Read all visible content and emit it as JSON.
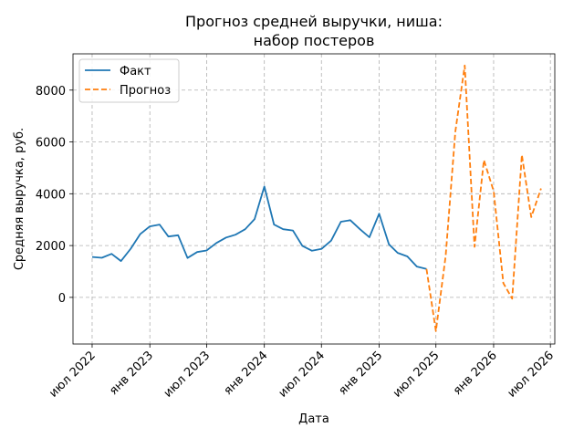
{
  "chart_data": {
    "type": "line",
    "title": [
      "Прогноз средней выручки, ниша:",
      "набор постеров"
    ],
    "xlabel": "Дата",
    "ylabel": "Средняя выручка, руб.",
    "grid": true,
    "legend_position": "top-left",
    "xlim": [
      "2022-05-01",
      "2026-07-15"
    ],
    "ylim": [
      -1800,
      9400
    ],
    "x_ticks": [
      {
        "date": "2022-07-01",
        "label": "июл 2022"
      },
      {
        "date": "2023-01-01",
        "label": "янв 2023"
      },
      {
        "date": "2023-07-01",
        "label": "июл 2023"
      },
      {
        "date": "2024-01-01",
        "label": "янв 2024"
      },
      {
        "date": "2024-07-01",
        "label": "июл 2024"
      },
      {
        "date": "2025-01-01",
        "label": "янв 2025"
      },
      {
        "date": "2025-07-01",
        "label": "июл 2025"
      },
      {
        "date": "2026-01-01",
        "label": "янв 2026"
      },
      {
        "date": "2026-07-01",
        "label": "июл 2026"
      }
    ],
    "y_ticks": [
      {
        "value": 0,
        "label": "0"
      },
      {
        "value": 2000,
        "label": "2000"
      },
      {
        "value": 4000,
        "label": "4000"
      },
      {
        "value": 6000,
        "label": "6000"
      },
      {
        "value": 8000,
        "label": "8000"
      }
    ],
    "series": [
      {
        "name": "Факт",
        "color": "#1f77b4",
        "style": "solid",
        "points": [
          [
            "2022-07-01",
            1560
          ],
          [
            "2022-08-01",
            1530
          ],
          [
            "2022-09-01",
            1680
          ],
          [
            "2022-10-01",
            1400
          ],
          [
            "2022-11-01",
            1880
          ],
          [
            "2022-12-01",
            2440
          ],
          [
            "2023-01-01",
            2740
          ],
          [
            "2023-02-01",
            2810
          ],
          [
            "2023-03-01",
            2350
          ],
          [
            "2023-04-01",
            2400
          ],
          [
            "2023-05-01",
            1520
          ],
          [
            "2023-06-01",
            1750
          ],
          [
            "2023-07-01",
            1810
          ],
          [
            "2023-08-01",
            2100
          ],
          [
            "2023-09-01",
            2310
          ],
          [
            "2023-10-01",
            2420
          ],
          [
            "2023-11-01",
            2630
          ],
          [
            "2023-12-01",
            3020
          ],
          [
            "2024-01-01",
            4280
          ],
          [
            "2024-02-01",
            2810
          ],
          [
            "2024-03-01",
            2630
          ],
          [
            "2024-04-01",
            2580
          ],
          [
            "2024-05-01",
            1990
          ],
          [
            "2024-06-01",
            1800
          ],
          [
            "2024-07-01",
            1870
          ],
          [
            "2024-08-01",
            2190
          ],
          [
            "2024-09-01",
            2920
          ],
          [
            "2024-10-01",
            2980
          ],
          [
            "2024-11-01",
            2630
          ],
          [
            "2024-12-01",
            2320
          ],
          [
            "2025-01-01",
            3230
          ],
          [
            "2025-02-01",
            2050
          ],
          [
            "2025-03-01",
            1720
          ],
          [
            "2025-04-01",
            1580
          ],
          [
            "2025-05-01",
            1190
          ],
          [
            "2025-06-01",
            1100
          ]
        ]
      },
      {
        "name": "Прогноз",
        "color": "#ff7f0e",
        "style": "dashed",
        "points": [
          [
            "2025-06-01",
            1100
          ],
          [
            "2025-07-01",
            -1300
          ],
          [
            "2025-08-01",
            1600
          ],
          [
            "2025-09-01",
            6400
          ],
          [
            "2025-10-01",
            8950
          ],
          [
            "2025-11-01",
            1950
          ],
          [
            "2025-12-01",
            5300
          ],
          [
            "2026-01-01",
            4100
          ],
          [
            "2026-02-01",
            550
          ],
          [
            "2026-03-01",
            -50
          ],
          [
            "2026-04-01",
            5500
          ],
          [
            "2026-05-01",
            3100
          ],
          [
            "2026-06-01",
            4200
          ]
        ]
      }
    ]
  }
}
